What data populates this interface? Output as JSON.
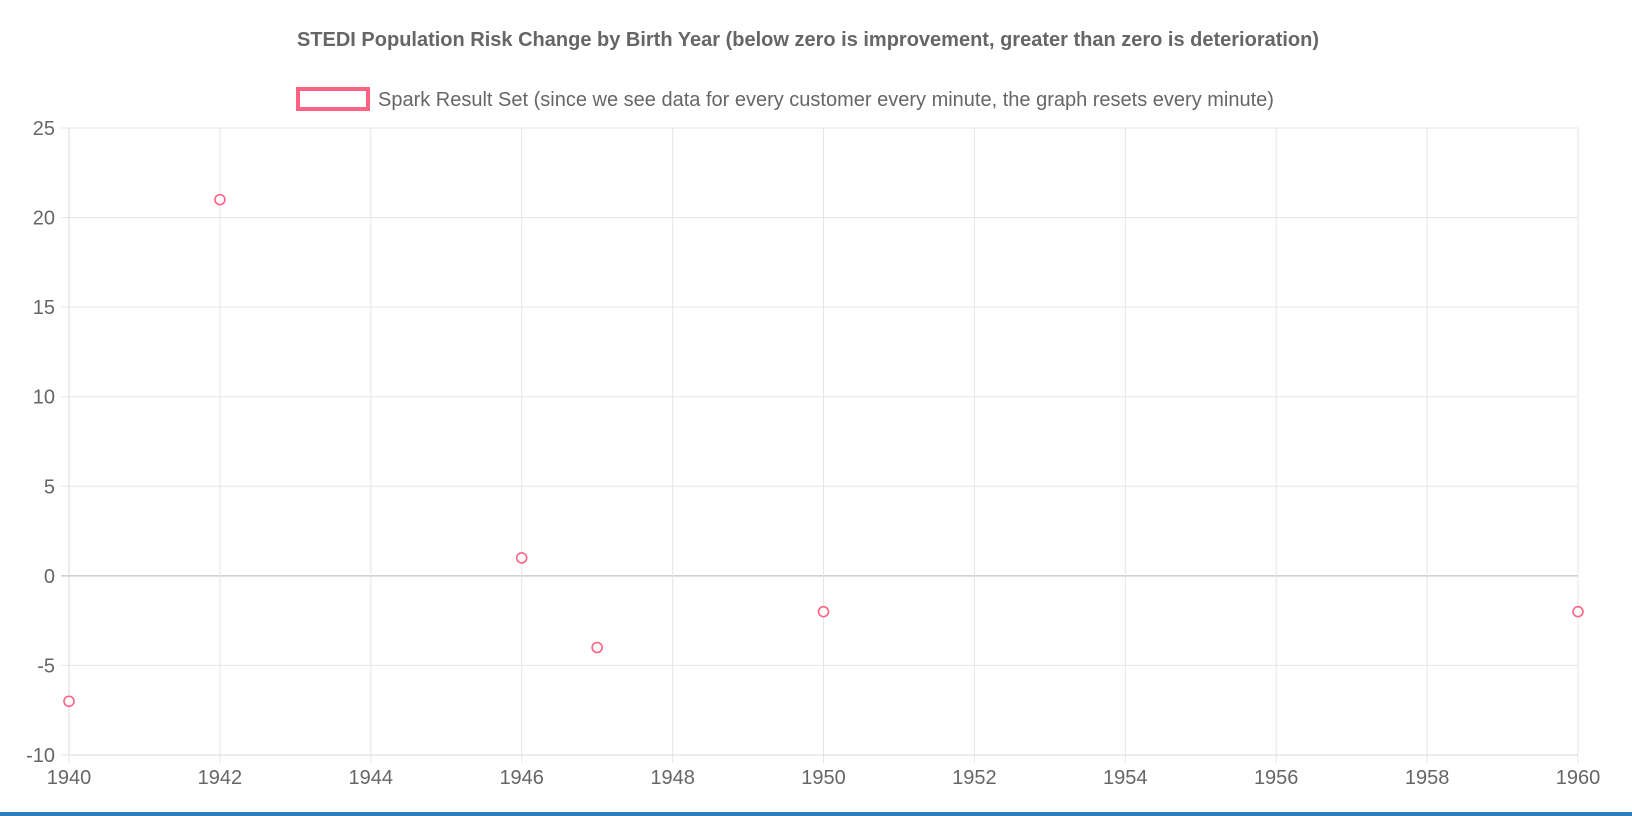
{
  "chart_data": {
    "type": "scatter",
    "title": "STEDI Population Risk Change by Birth Year (below zero is improvement, greater than zero is deterioration)",
    "xlabel": "",
    "ylabel": "",
    "xlim": [
      1940,
      1960
    ],
    "ylim": [
      -10,
      25
    ],
    "x_ticks": [
      1940,
      1942,
      1944,
      1946,
      1948,
      1950,
      1952,
      1954,
      1956,
      1958,
      1960
    ],
    "y_ticks": [
      25,
      20,
      15,
      10,
      5,
      0,
      -5,
      -10
    ],
    "grid": true,
    "legend_position": "top",
    "series": [
      {
        "name": "Spark Result Set (since we see data for every customer every minute, the graph resets every minute)",
        "color": "#ff6384",
        "points": [
          {
            "x": 1940,
            "y": -7
          },
          {
            "x": 1942,
            "y": 21
          },
          {
            "x": 1946,
            "y": 1
          },
          {
            "x": 1947,
            "y": -4
          },
          {
            "x": 1950,
            "y": -2
          },
          {
            "x": 1960,
            "y": -2
          }
        ]
      }
    ]
  },
  "colors": {
    "grid": "#e5e5e5",
    "zero_line": "#b3b3b3",
    "text": "#666666",
    "bottom_bar": "#2b7fc0"
  }
}
